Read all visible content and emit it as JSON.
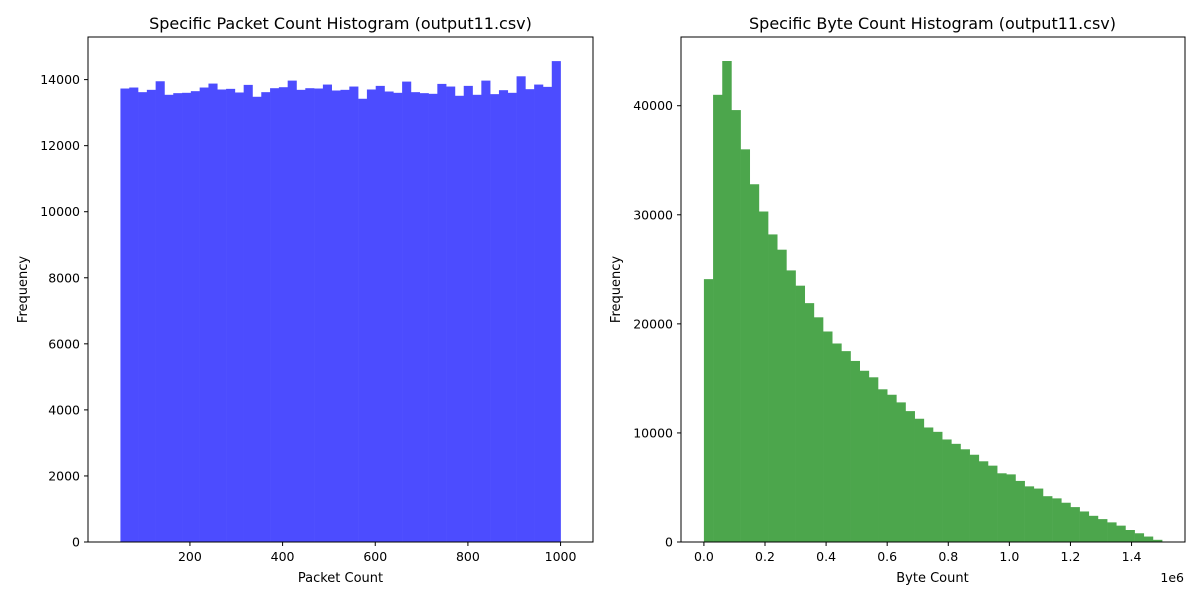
{
  "chart_data": [
    {
      "type": "bar",
      "title": "Specific Packet Count Histogram (output11.csv)",
      "xlabel": "Packet Count",
      "ylabel": "Frequency",
      "color": "#4c4cff",
      "xlim": [
        -20,
        1070
      ],
      "ylim": [
        0,
        15290
      ],
      "xticks": [
        200,
        400,
        600,
        800,
        1000
      ],
      "yticks": [
        0,
        2000,
        4000,
        6000,
        8000,
        10000,
        12000,
        14000
      ],
      "tick_labels_x": [
        "200",
        "400",
        "600",
        "800",
        "1000"
      ],
      "tick_labels_y": [
        "0",
        "2000",
        "4000",
        "6000",
        "8000",
        "10000",
        "12000",
        "14000"
      ],
      "bins": {
        "start": 50,
        "width": 19,
        "count": 50
      },
      "values": [
        13730,
        13760,
        13620,
        13690,
        13950,
        13540,
        13590,
        13600,
        13650,
        13760,
        13880,
        13700,
        13720,
        13610,
        13840,
        13480,
        13620,
        13740,
        13770,
        13970,
        13690,
        13740,
        13730,
        13850,
        13670,
        13690,
        13790,
        13420,
        13700,
        13810,
        13640,
        13600,
        13940,
        13620,
        13590,
        13570,
        13870,
        13790,
        13510,
        13810,
        13540,
        13970,
        13560,
        13680,
        13600,
        14100,
        13710,
        13850,
        13780,
        14560
      ]
    },
    {
      "type": "bar",
      "title": "Specific Byte Count Histogram (output11.csv)",
      "xlabel": "Byte Count",
      "ylabel": "Frequency",
      "color": "#4ca64c",
      "scale_label": "1e6",
      "xlim": [
        -0.075,
        1.575
      ],
      "ylim": [
        0,
        46300
      ],
      "xticks": [
        0.0,
        0.2,
        0.4,
        0.6,
        0.8,
        1.0,
        1.2,
        1.4
      ],
      "yticks": [
        0,
        10000,
        20000,
        30000,
        40000
      ],
      "tick_labels_x": [
        "0.0",
        "0.2",
        "0.4",
        "0.6",
        "0.8",
        "1.0",
        "1.2",
        "1.4"
      ],
      "tick_labels_y": [
        "0",
        "10000",
        "20000",
        "30000",
        "40000"
      ],
      "bins": {
        "start": 0.0,
        "width": 0.03,
        "count": 50
      },
      "values": [
        24100,
        41000,
        44100,
        39600,
        36000,
        32800,
        30300,
        28200,
        26800,
        24900,
        23500,
        21900,
        20600,
        19300,
        18200,
        17500,
        16600,
        15700,
        15100,
        14000,
        13500,
        12800,
        12000,
        11300,
        10500,
        10100,
        9400,
        9000,
        8500,
        8000,
        7400,
        7000,
        6300,
        6200,
        5600,
        5100,
        4900,
        4200,
        4000,
        3600,
        3200,
        2800,
        2400,
        2100,
        1800,
        1500,
        1100,
        800,
        500,
        200
      ]
    }
  ]
}
